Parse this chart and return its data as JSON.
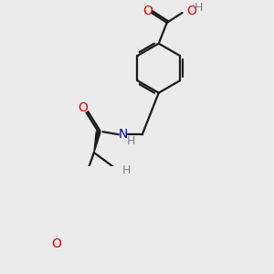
{
  "background_color": "#ebebeb",
  "bond_color": "#1a1a1a",
  "oxygen_color": "#e00000",
  "nitrogen_color": "#0000cc",
  "hydrogen_color": "#808080",
  "line_width": 1.6,
  "figsize": [
    3.0,
    3.0
  ],
  "dpi": 100,
  "xlim": [
    0,
    300
  ],
  "ylim": [
    0,
    300
  ]
}
